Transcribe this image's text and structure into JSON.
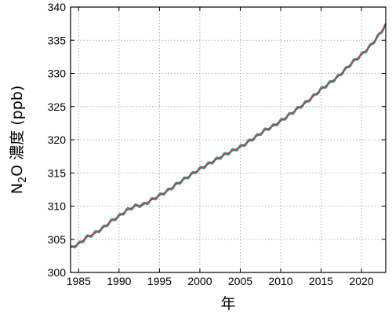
{
  "chart_data": {
    "type": "line",
    "xlabel": "年",
    "ylabel_main": "N",
    "ylabel_sub": "2",
    "ylabel_rest": "O 濃度 (ppb)",
    "xlim": [
      1984,
      2023
    ],
    "ylim": [
      300,
      340
    ],
    "xticks": [
      1985,
      1990,
      1995,
      2000,
      2005,
      2010,
      2015,
      2020
    ],
    "yticks": [
      300,
      305,
      310,
      315,
      320,
      325,
      330,
      335,
      340
    ],
    "grid": true,
    "colors": {
      "monthly": "#2a9d9a",
      "trend": "#d62728"
    },
    "series": [
      {
        "style": "monthly",
        "seasonal_amplitude": 0.25,
        "x": [
          1984.0,
          1985.0,
          1986.0,
          1987.0,
          1988.0,
          1989.0,
          1990.0,
          1991.0,
          1992.0,
          1993.0,
          1994.0,
          1995.0,
          1996.0,
          1997.0,
          1998.0,
          1999.0,
          2000.0,
          2001.0,
          2002.0,
          2003.0,
          2004.0,
          2005.0,
          2006.0,
          2007.0,
          2008.0,
          2009.0,
          2010.0,
          2011.0,
          2012.0,
          2013.0,
          2014.0,
          2015.0,
          2016.0,
          2017.0,
          2018.0,
          2019.0,
          2020.0,
          2021.0,
          2022.0,
          2023.0
        ],
        "y": [
          303.7,
          304.3,
          305.3,
          305.9,
          306.7,
          307.7,
          308.5,
          309.4,
          310.0,
          310.2,
          310.9,
          311.6,
          312.3,
          313.2,
          314.0,
          314.8,
          315.6,
          316.3,
          317.0,
          317.7,
          318.3,
          318.9,
          319.7,
          320.5,
          321.4,
          322.0,
          322.8,
          323.7,
          324.6,
          325.5,
          326.5,
          327.6,
          328.5,
          329.4,
          330.6,
          331.8,
          332.8,
          334.0,
          335.5,
          337.3
        ]
      },
      {
        "style": "trend",
        "x": [
          1984.0,
          1985.0,
          1986.0,
          1987.0,
          1988.0,
          1989.0,
          1990.0,
          1991.0,
          1992.0,
          1993.0,
          1994.0,
          1995.0,
          1996.0,
          1997.0,
          1998.0,
          1999.0,
          2000.0,
          2001.0,
          2002.0,
          2003.0,
          2004.0,
          2005.0,
          2006.0,
          2007.0,
          2008.0,
          2009.0,
          2010.0,
          2011.0,
          2012.0,
          2013.0,
          2014.0,
          2015.0,
          2016.0,
          2017.0,
          2018.0,
          2019.0,
          2020.0,
          2021.0,
          2022.0,
          2023.0
        ],
        "y": [
          303.7,
          304.3,
          305.3,
          305.9,
          306.7,
          307.7,
          308.5,
          309.4,
          310.0,
          310.2,
          310.9,
          311.6,
          312.3,
          313.2,
          314.0,
          314.8,
          315.6,
          316.3,
          317.0,
          317.7,
          318.3,
          318.9,
          319.7,
          320.5,
          321.4,
          322.0,
          322.8,
          323.7,
          324.6,
          325.5,
          326.5,
          327.6,
          328.5,
          329.4,
          330.6,
          331.8,
          332.8,
          334.0,
          335.5,
          337.3
        ]
      }
    ]
  }
}
